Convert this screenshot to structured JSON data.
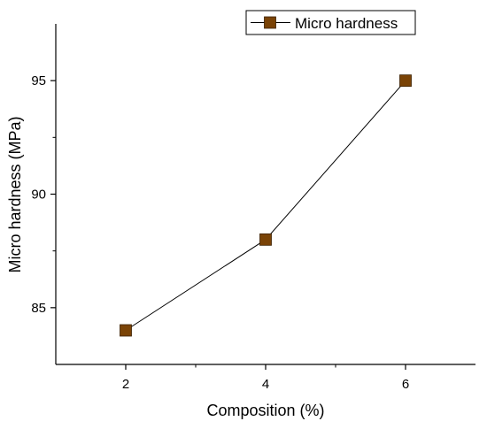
{
  "chart_data": {
    "type": "line",
    "xlabel": "Composition (%)",
    "ylabel": "Micro hardness (MPa)",
    "xlim": [
      1,
      7
    ],
    "ylim": [
      82.5,
      97.5
    ],
    "xticks": [
      2,
      4,
      6
    ],
    "yticks": [
      85,
      90,
      95
    ],
    "grid": false,
    "legend_position": "top-right",
    "series": [
      {
        "name": "Micro hardness",
        "x": [
          2,
          4,
          6
        ],
        "y": [
          84,
          88,
          95
        ],
        "marker": "square",
        "marker_color": "#7a4306",
        "marker_edge": "#3b2000",
        "line_color": "#000000"
      }
    ]
  }
}
